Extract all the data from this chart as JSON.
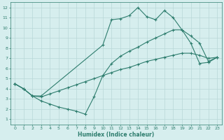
{
  "xlabel": "Humidex (Indice chaleur)",
  "bg_color": "#d6eeee",
  "grid_color": "#b8d8d8",
  "line_color": "#2e7d6e",
  "xlim": [
    -0.5,
    23.5
  ],
  "ylim": [
    0.5,
    12.5
  ],
  "xticks": [
    0,
    1,
    2,
    3,
    4,
    5,
    6,
    7,
    8,
    9,
    10,
    11,
    12,
    13,
    14,
    15,
    16,
    17,
    18,
    19,
    20,
    21,
    22,
    23
  ],
  "yticks": [
    1,
    2,
    3,
    4,
    5,
    6,
    7,
    8,
    9,
    10,
    11,
    12
  ],
  "line1_x": [
    0,
    1,
    2,
    3,
    10,
    11,
    12,
    13,
    14,
    15,
    16,
    17,
    18,
    19,
    20,
    21,
    22,
    23
  ],
  "line1_y": [
    4.5,
    4.0,
    3.3,
    3.3,
    8.3,
    10.8,
    10.9,
    11.2,
    12.0,
    11.1,
    10.8,
    11.7,
    11.0,
    9.8,
    8.5,
    6.5,
    6.6,
    7.1
  ],
  "line2_x": [
    0,
    1,
    2,
    3,
    4,
    5,
    6,
    7,
    8,
    9,
    10,
    11,
    12,
    13,
    14,
    15,
    16,
    17,
    18,
    19,
    20,
    21,
    22,
    23
  ],
  "line2_y": [
    4.5,
    4.0,
    3.3,
    3.2,
    3.5,
    3.8,
    4.1,
    4.4,
    4.7,
    5.0,
    5.3,
    5.6,
    5.9,
    6.1,
    6.4,
    6.7,
    6.9,
    7.1,
    7.3,
    7.5,
    7.5,
    7.3,
    7.0,
    7.1
  ],
  "line3_x": [
    0,
    1,
    2,
    3,
    4,
    5,
    6,
    7,
    8,
    9,
    10,
    11,
    12,
    13,
    14,
    15,
    16,
    17,
    18,
    19,
    20,
    21,
    22,
    23
  ],
  "line3_y": [
    4.5,
    4.0,
    3.3,
    2.8,
    2.5,
    2.2,
    2.0,
    1.8,
    1.5,
    3.2,
    5.3,
    6.5,
    7.2,
    7.7,
    8.1,
    8.6,
    9.0,
    9.4,
    9.8,
    9.8,
    9.2,
    8.5,
    6.7,
    7.1
  ],
  "marker": "+",
  "markersize": 3,
  "linewidth": 0.8
}
